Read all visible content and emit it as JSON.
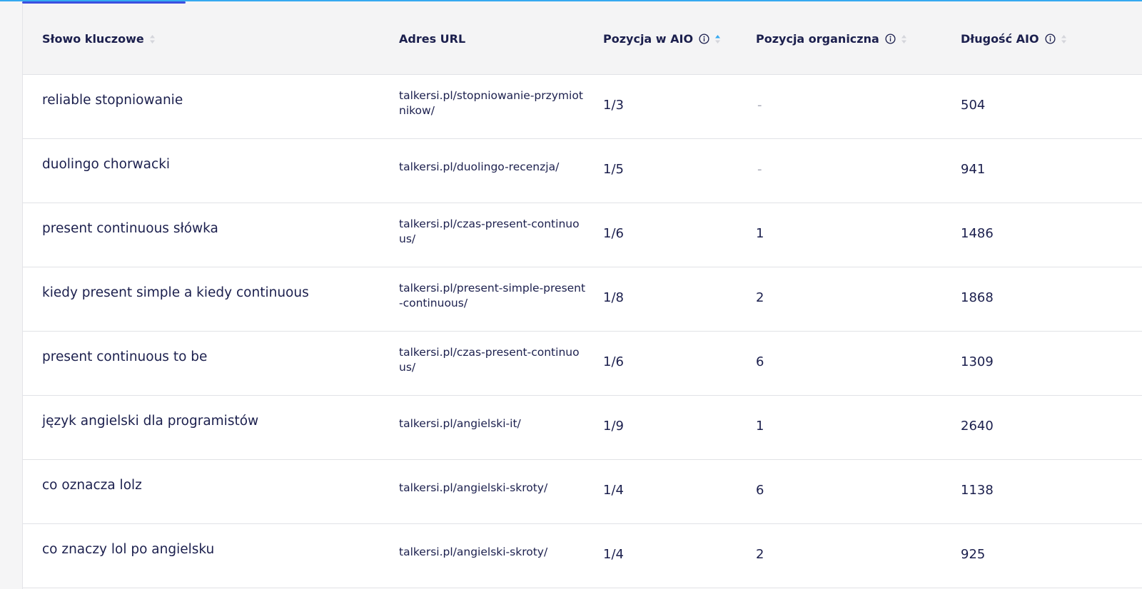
{
  "table": {
    "headers": {
      "keyword": "Słowo kluczowe",
      "url": "Adres URL",
      "aio_position": "Pozycja w AIO",
      "organic_position": "Pozycja organiczna",
      "aio_length": "Długość AIO"
    },
    "rows": [
      {
        "keyword": "reliable stopniowanie",
        "url": "talkersi.pl/stopniowanie-przymiotnikow/",
        "aio_position": "1/3",
        "organic_position": "-",
        "aio_length": "504"
      },
      {
        "keyword": "duolingo chorwacki",
        "url": "talkersi.pl/duolingo-recenzja/",
        "aio_position": "1/5",
        "organic_position": "-",
        "aio_length": "941"
      },
      {
        "keyword": "present continuous słówka",
        "url": "talkersi.pl/czas-present-continuous/",
        "aio_position": "1/6",
        "organic_position": "1",
        "aio_length": "1486"
      },
      {
        "keyword": "kiedy present simple a kiedy continuous",
        "url": "talkersi.pl/present-simple-present-continuous/",
        "aio_position": "1/8",
        "organic_position": "2",
        "aio_length": "1868"
      },
      {
        "keyword": "present continuous to be",
        "url": "talkersi.pl/czas-present-continuous/",
        "aio_position": "1/6",
        "organic_position": "6",
        "aio_length": "1309"
      },
      {
        "keyword": "język angielski dla programistów",
        "url": "talkersi.pl/angielski-it/",
        "aio_position": "1/9",
        "organic_position": "1",
        "aio_length": "2640"
      },
      {
        "keyword": "co oznacza lolz",
        "url": "talkersi.pl/angielski-skroty/",
        "aio_position": "1/4",
        "organic_position": "6",
        "aio_length": "1138"
      },
      {
        "keyword": "co znaczy lol po angielsku",
        "url": "talkersi.pl/angielski-skroty/",
        "aio_position": "1/4",
        "organic_position": "2",
        "aio_length": "925"
      }
    ]
  },
  "icons": {
    "sort": "sort-icon",
    "sort_active": "sort-ascending-icon",
    "info": "info-icon"
  },
  "colors": {
    "accent_line": "#35a9f0",
    "tab_indicator": "#3c4fe0",
    "sort_active": "#35a9f0",
    "sort_inactive": "#c7c8d0",
    "text": "#1b1f4d",
    "dash": "#a6a8b6"
  }
}
